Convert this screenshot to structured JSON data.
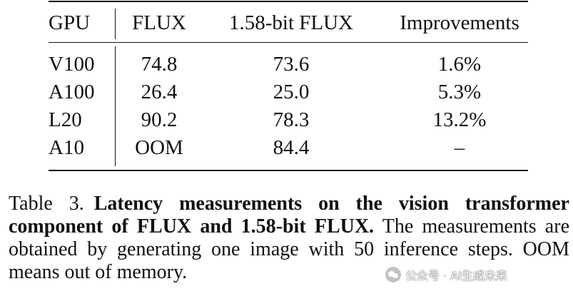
{
  "table": {
    "headers": [
      "GPU",
      "FLUX",
      "1.58-bit FLUX",
      "Improvements"
    ],
    "rows": [
      [
        "V100",
        "74.8",
        "73.6",
        "1.6%"
      ],
      [
        "A100",
        "26.4",
        "25.0",
        "5.3%"
      ],
      [
        "L20",
        "90.2",
        "78.3",
        "13.2%"
      ],
      [
        "A10",
        "OOM",
        "84.4",
        "–"
      ]
    ]
  },
  "caption": {
    "label": "Table 3.",
    "bold": "Latency measurements on the vision transformer component of FLUX and 1.58-bit FLUX.",
    "text": " The measurements are obtained by generating one image with 50 inference steps. OOM means out of memory."
  },
  "watermark": {
    "text": "公众号 · AI生成未来",
    "icon": "wechat-icon"
  }
}
